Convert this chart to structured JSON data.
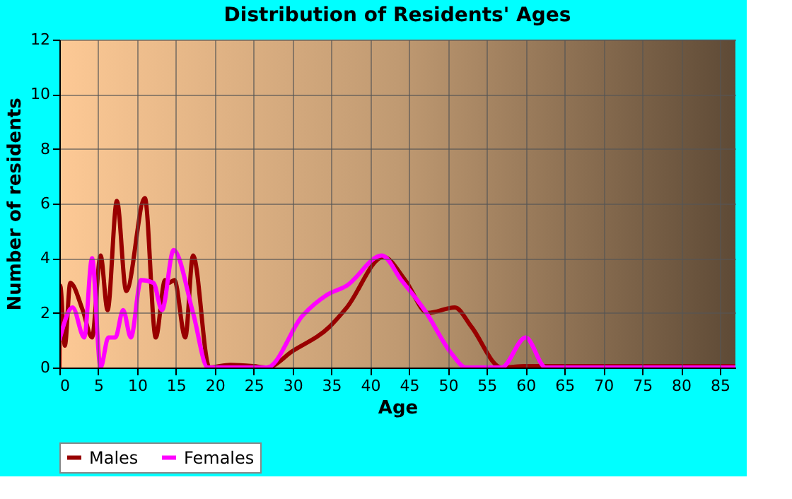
{
  "chart_data": {
    "type": "line",
    "title": "Distribution of Residents' Ages",
    "xlabel": "Age",
    "ylabel": "Number of residents",
    "xlim": [
      0,
      87
    ],
    "ylim": [
      0,
      12
    ],
    "xticks": [
      0,
      5,
      10,
      15,
      20,
      25,
      30,
      35,
      40,
      45,
      50,
      55,
      60,
      65,
      70,
      75,
      80,
      85
    ],
    "yticks": [
      0,
      2,
      4,
      6,
      8,
      10,
      12
    ],
    "grid": true,
    "legend": "bottom",
    "marker": "none",
    "line_style": "solid",
    "series": [
      {
        "name": "Males",
        "color": "#990000",
        "x": [
          0,
          0.1,
          0.7,
          1.4,
          3,
          4.2,
          5.3,
          6.2,
          7.4,
          8.6,
          11,
          12.4,
          13.6,
          14.1,
          14.8,
          16.2,
          17.2,
          19.3,
          22,
          25,
          26.7,
          30,
          34.8,
          37,
          41.7,
          44.5,
          47.4,
          50.9,
          53,
          56.9,
          60,
          70,
          80,
          87
        ],
        "values": [
          0,
          3,
          0.8,
          3.1,
          2.1,
          1.1,
          4.1,
          2.1,
          6.1,
          2.8,
          6.2,
          1.1,
          3.2,
          3.1,
          3.2,
          1.1,
          4.1,
          0,
          0.1,
          0.05,
          0,
          0.6,
          1.5,
          2.2,
          4.05,
          3.2,
          2.0,
          2.2,
          1.5,
          0,
          0.05,
          0.05,
          0.05,
          0.05
        ]
      },
      {
        "name": "Females",
        "color": "#ff00ff",
        "x": [
          0,
          1.7,
          3.2,
          4.2,
          5.3,
          6.3,
          7.2,
          8.2,
          9.2,
          10.5,
          12.1,
          13.2,
          14.7,
          17.2,
          19.1,
          22,
          26.7,
          31.3,
          34.4,
          37,
          41.5,
          44,
          47,
          50.5,
          52.3,
          56.9,
          60,
          62.6,
          70,
          80,
          87
        ],
        "values": [
          1.0,
          2.2,
          1.1,
          4.0,
          0,
          1.1,
          1.1,
          2.1,
          1.1,
          3.2,
          3.1,
          2.1,
          4.3,
          2.0,
          0,
          0,
          0,
          1.9,
          2.65,
          3.0,
          4.1,
          3.2,
          2.1,
          0.5,
          0,
          0,
          1.1,
          0,
          0,
          0,
          0
        ]
      }
    ]
  }
}
